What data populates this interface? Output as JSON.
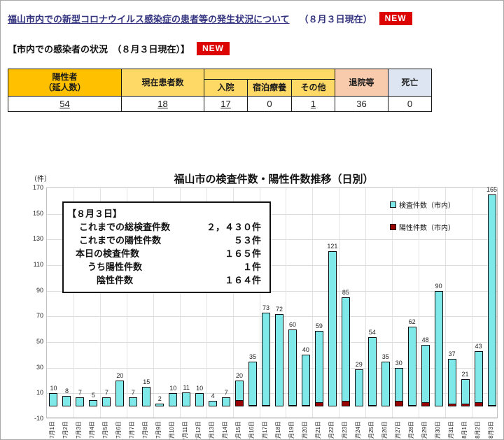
{
  "page": {
    "title": "福山市内での新型コロナウイルス感染症の患者等の発生状況について",
    "title_suffix": "（８月３日現在）",
    "new_badge": "NEW",
    "subtitle": "【市内での感染者の状況　（８月３日現在）】"
  },
  "colors": {
    "badge_red": "#dd0404",
    "header_orange": "#ffc000",
    "header_yellow": "#ffd966",
    "header_salmon": "#f8cbad",
    "header_blue": "#dce5f1",
    "bar_test_fill": "#7fe9e9",
    "bar_positive_fill": "#990000"
  },
  "summary_table": {
    "headers": {
      "positive_total": "陽性者\n（延人数）",
      "current_patients": "現在患者数",
      "hospitalized": "入院",
      "hotel_care": "宿泊療養",
      "other": "その他",
      "discharged": "退院等",
      "deaths": "死亡"
    },
    "values": {
      "positive_total": "54",
      "current_patients": "18",
      "hospitalized": "17",
      "hotel_care": "0",
      "other": "1",
      "discharged": "36",
      "deaths": "0"
    }
  },
  "info_box": {
    "title": "【８月３日】",
    "rows": [
      {
        "label": "これまでの総検査件数",
        "value": "２，４３０件",
        "indent": 1
      },
      {
        "label": "これまでの陽性件数",
        "value": "５３件",
        "indent": 1
      },
      {
        "label": "本日の検査件数",
        "value": "１６５件",
        "indent": 0
      },
      {
        "label": "うち陽性件数",
        "value": "１件",
        "indent": 2
      },
      {
        "label": "陰性件数",
        "value": "１６４件",
        "indent": 3
      }
    ]
  },
  "chart_data": {
    "type": "bar",
    "title": "福山市の検査件数・陽性件数推移（日別）",
    "unit_label": "（件）",
    "ylim": [
      -10,
      170
    ],
    "ytick_step": 20,
    "grid": true,
    "legend_position": "right-top",
    "categories": [
      "7月1日",
      "7月2日",
      "7月3日",
      "7月4日",
      "7月5日",
      "7月6日",
      "7月7日",
      "7月8日",
      "7月9日",
      "7月10日",
      "7月11日",
      "7月12日",
      "7月13日",
      "7月14日",
      "7月15日",
      "7月16日",
      "7月17日",
      "7月18日",
      "7月19日",
      "7月20日",
      "7月21日",
      "7月22日",
      "7月23日",
      "7月24日",
      "7月25日",
      "7月26日",
      "7月27日",
      "7月28日",
      "7月29日",
      "7月30日",
      "7月31日",
      "8月1日",
      "8月2日",
      "8月3日"
    ],
    "series": [
      {
        "name": "検査件数（市内）",
        "color": "#7fe9e9",
        "values": [
          10,
          8,
          7,
          5,
          7,
          20,
          7,
          15,
          2,
          10,
          11,
          10,
          4,
          7,
          20,
          35,
          73,
          72,
          60,
          40,
          59,
          121,
          85,
          29,
          54,
          35,
          30,
          62,
          48,
          90,
          37,
          21,
          43,
          165
        ],
        "show_labels": true
      },
      {
        "name": "陽性件数（市内）",
        "color": "#990000",
        "values": [
          0,
          0,
          0,
          0,
          0,
          0,
          0,
          0,
          0,
          0,
          0,
          0,
          0,
          0,
          5,
          1,
          1,
          0,
          1,
          1,
          3,
          0,
          4,
          0,
          1,
          0,
          4,
          1,
          3,
          0,
          2,
          2,
          3,
          1
        ],
        "show_labels": false
      }
    ]
  }
}
